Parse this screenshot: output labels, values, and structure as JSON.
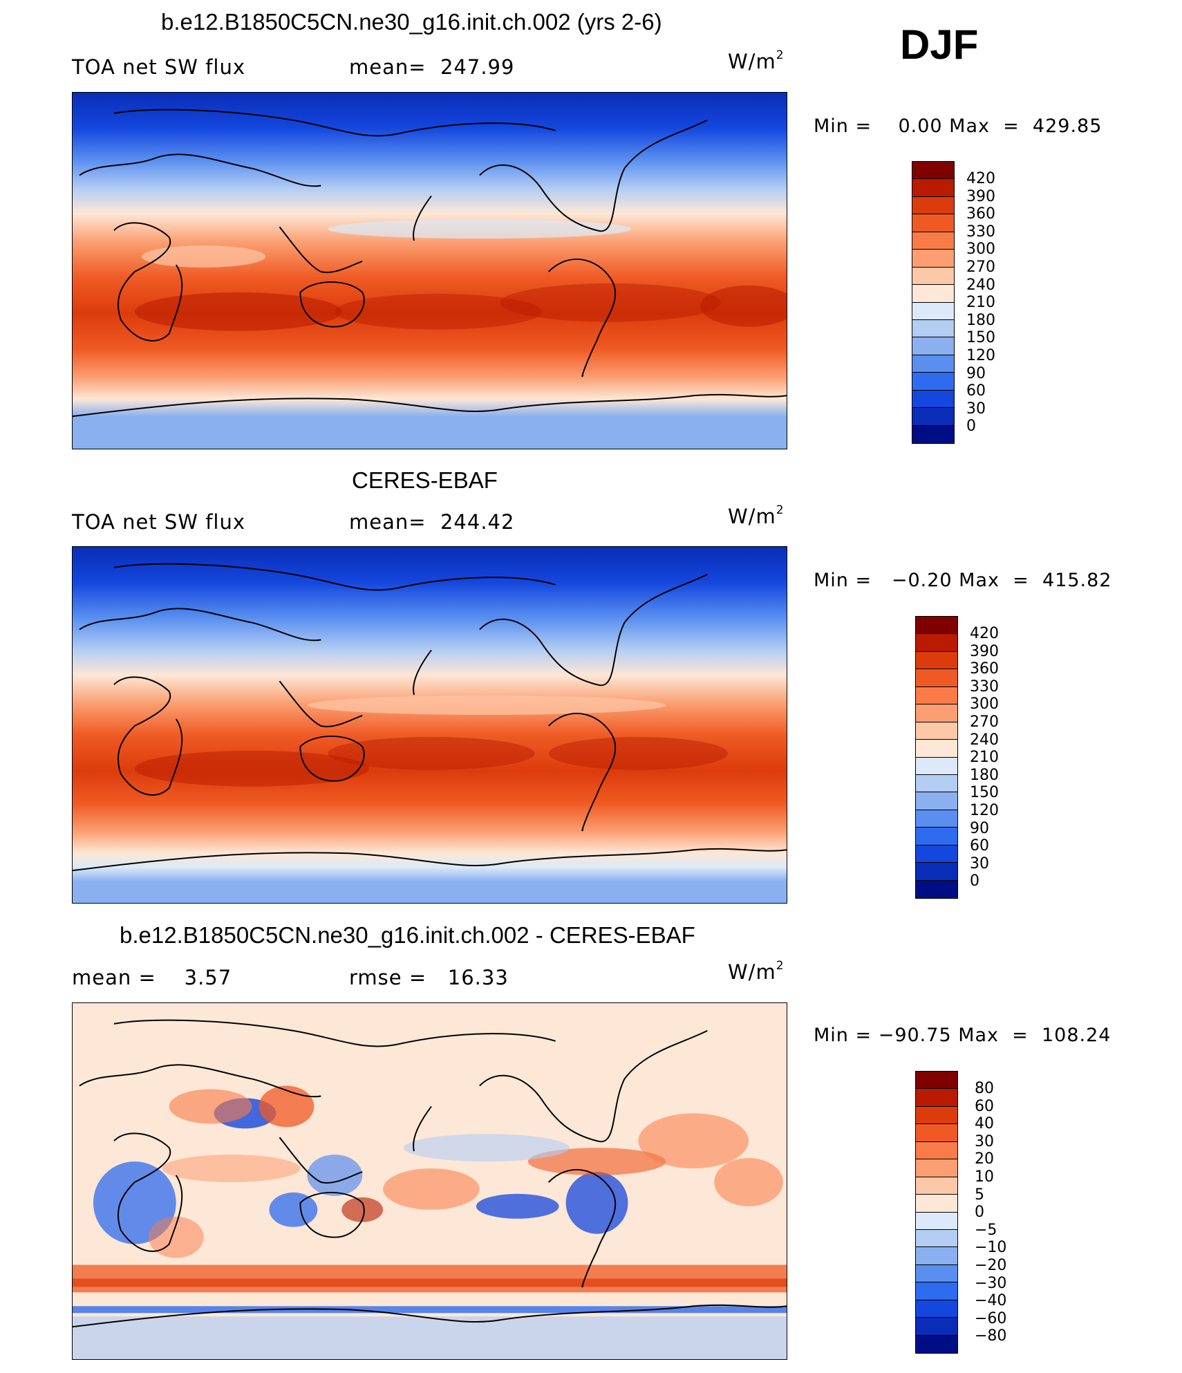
{
  "season": "DJF",
  "units_text": "W/m",
  "units_sup": "2",
  "panels": [
    {
      "title": "b.e12.B1850C5CN.ne30_g16.init.ch.002 (yrs 2-6)",
      "left_label": "TOA net SW flux",
      "center_label": "mean=  247.99",
      "minmax": "Min =    0.00 Max  =  429.85",
      "levels": [
        "420",
        "390",
        "360",
        "330",
        "300",
        "270",
        "240",
        "210",
        "180",
        "150",
        "120",
        "90",
        "60",
        "30",
        "0"
      ],
      "colors": [
        "#800000",
        "#b81b00",
        "#dc3c0c",
        "#ef5a24",
        "#f97b47",
        "#fb9f72",
        "#fdc8a8",
        "#fde7d6",
        "#dbe9f8",
        "#b3cdf3",
        "#8ab0ef",
        "#5a8ff0",
        "#2e6bef",
        "#1447dd",
        "#0a2db8",
        "#000e85"
      ]
    },
    {
      "title": "CERES-EBAF",
      "left_label": "TOA net SW flux",
      "center_label": "mean=  244.42",
      "minmax": "Min =   −0.20 Max  =  415.82",
      "levels": [
        "420",
        "390",
        "360",
        "330",
        "300",
        "270",
        "240",
        "210",
        "180",
        "150",
        "120",
        "90",
        "60",
        "30",
        "0"
      ],
      "colors": [
        "#800000",
        "#b81b00",
        "#dc3c0c",
        "#ef5a24",
        "#f97b47",
        "#fb9f72",
        "#fdc8a8",
        "#fde7d6",
        "#dbe9f8",
        "#b3cdf3",
        "#8ab0ef",
        "#5a8ff0",
        "#2e6bef",
        "#1447dd",
        "#0a2db8",
        "#000e85"
      ]
    },
    {
      "title": "b.e12.B1850C5CN.ne30_g16.init.ch.002 - CERES-EBAF",
      "left_label": "mean =    3.57",
      "center_label": "rmse =   16.33",
      "minmax": "Min = −90.75 Max  =  108.24",
      "levels": [
        "80",
        "60",
        "40",
        "30",
        "20",
        "10",
        "5",
        "0",
        "−5",
        "−10",
        "−20",
        "−30",
        "−40",
        "−60",
        "−80"
      ],
      "colors": [
        "#800000",
        "#b81b00",
        "#dc3c0c",
        "#ef5a24",
        "#f97b47",
        "#fb9f72",
        "#fdc8a8",
        "#fde7d6",
        "#dbe9f8",
        "#b3cdf3",
        "#8ab0ef",
        "#5a8ff0",
        "#2e6bef",
        "#1447dd",
        "#0a2db8",
        "#000e85"
      ]
    }
  ]
}
